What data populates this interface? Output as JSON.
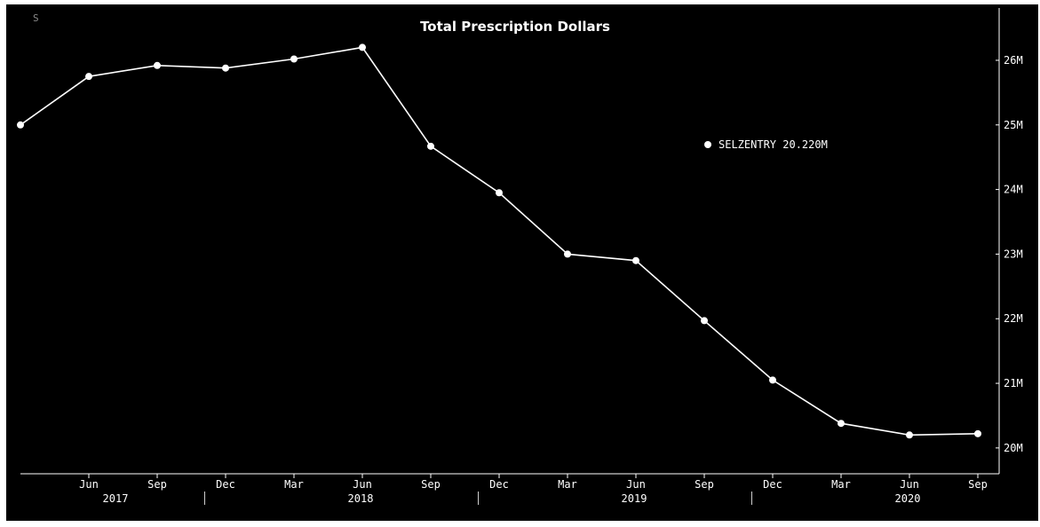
{
  "badge": "S",
  "chart_data": {
    "type": "line",
    "title": "Total Prescription Dollars",
    "xlabel": "",
    "ylabel": "",
    "x": [
      "Mar 2017",
      "Jun 2017",
      "Sep 2017",
      "Dec 2017",
      "Mar 2018",
      "Jun 2018",
      "Sep 2018",
      "Dec 2018",
      "Mar 2019",
      "Jun 2019",
      "Sep 2019",
      "Dec 2019",
      "Mar 2020",
      "Jun 2020",
      "Sep 2020"
    ],
    "series": [
      {
        "name": "SELZENTRY",
        "values": [
          25.0,
          25.75,
          25.92,
          25.88,
          26.02,
          26.2,
          24.67,
          23.95,
          23.0,
          22.9,
          21.97,
          21.05,
          20.38,
          20.2,
          20.22
        ],
        "color": "#ffffff"
      }
    ],
    "legend": {
      "label": "SELZENTRY 20.220M",
      "position": "upper-right"
    },
    "x_tick_labels": [
      "Jun",
      "Sep",
      "Dec",
      "Mar",
      "Jun",
      "Sep",
      "Dec",
      "Mar",
      "Jun",
      "Sep",
      "Dec",
      "Mar",
      "Jun",
      "Sep"
    ],
    "x_year_labels": [
      "2017",
      "2018",
      "2019",
      "2020"
    ],
    "y_tick_labels": [
      "26M",
      "25M",
      "24M",
      "23M",
      "22M",
      "21M",
      "20M"
    ],
    "y_ticks": [
      26,
      25,
      24,
      23,
      22,
      21,
      20
    ],
    "ylim": [
      19.6,
      26.7
    ],
    "y_axis_side": "right",
    "grid": false,
    "background": "#000000",
    "line_color": "#ffffff"
  }
}
